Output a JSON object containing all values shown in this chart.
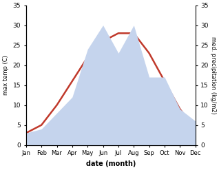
{
  "months": [
    "Jan",
    "Feb",
    "Mar",
    "Apr",
    "May",
    "Jun",
    "Jul",
    "Aug",
    "Sep",
    "Oct",
    "Nov",
    "Dec"
  ],
  "temperature": [
    3,
    5,
    10,
    16,
    22,
    26,
    28,
    28,
    23,
    16,
    9,
    4
  ],
  "precipitation": [
    3,
    4,
    8,
    12,
    24,
    30,
    23,
    30,
    17,
    17,
    9,
    6
  ],
  "temp_color": "#c0392b",
  "precip_color_fill": "#c5d4ed",
  "ylim": [
    0,
    35
  ],
  "ylabel_left": "max temp (C)",
  "ylabel_right": "med. precipitation (kg/m2)",
  "xlabel": "date (month)",
  "yticks": [
    0,
    5,
    10,
    15,
    20,
    25,
    30,
    35
  ],
  "background_color": "#ffffff"
}
